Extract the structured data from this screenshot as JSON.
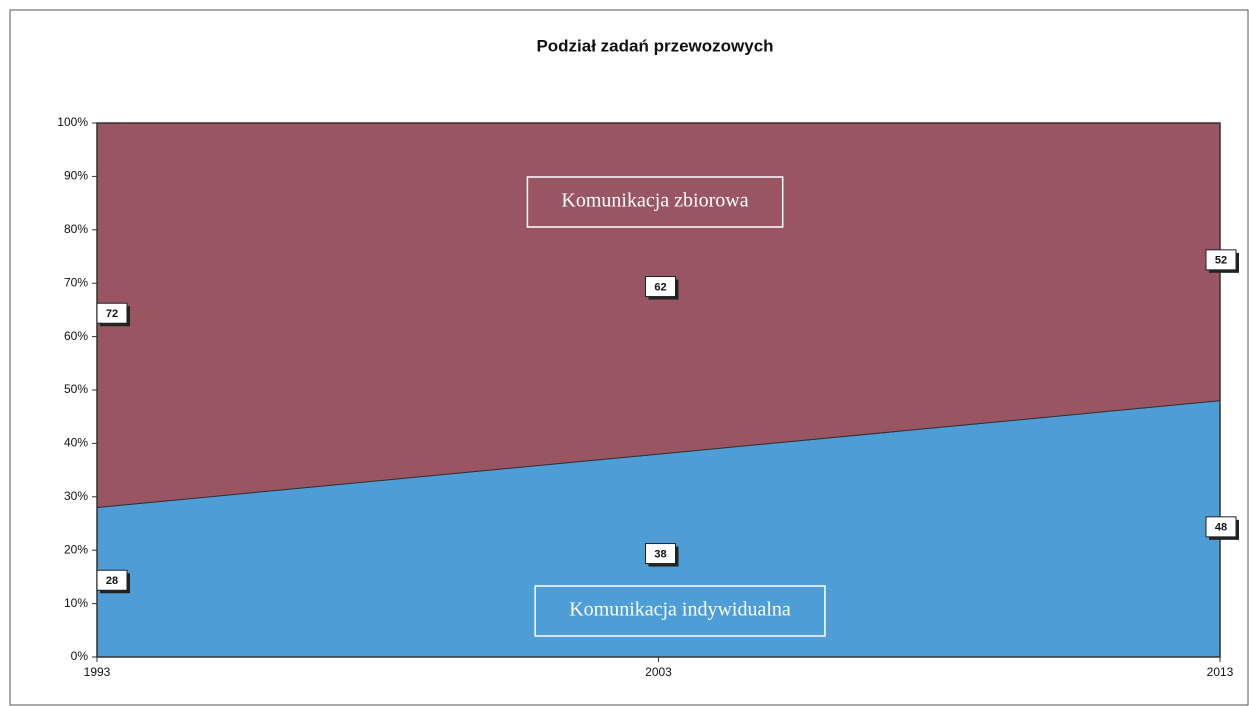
{
  "chart_data": {
    "type": "stacked_area",
    "title": "Podział zadań przewozowych",
    "x": [
      1993,
      2003,
      2013
    ],
    "xlim": [
      1993,
      2013
    ],
    "xticks": [
      1993,
      2003,
      2013
    ],
    "ylim": [
      0,
      100
    ],
    "yticks": [
      {
        "value": 0,
        "label": "0%"
      },
      {
        "value": 10,
        "label": "10%"
      },
      {
        "value": 20,
        "label": "20%"
      },
      {
        "value": 30,
        "label": "30%"
      },
      {
        "value": 40,
        "label": "40%"
      },
      {
        "value": 50,
        "label": "50%"
      },
      {
        "value": 60,
        "label": "60%"
      },
      {
        "value": 70,
        "label": "70%"
      },
      {
        "value": 80,
        "label": "80%"
      },
      {
        "value": 90,
        "label": "90%"
      },
      {
        "value": 100,
        "label": "100%"
      }
    ],
    "grid": false,
    "series": [
      {
        "name": "Komunikacja indywidualna",
        "color": "#4e9dd7",
        "values": [
          28,
          38,
          48
        ]
      },
      {
        "name": "Komunikacja zbiorowa",
        "color": "#9a5562",
        "values": [
          72,
          62,
          52
        ]
      }
    ]
  }
}
